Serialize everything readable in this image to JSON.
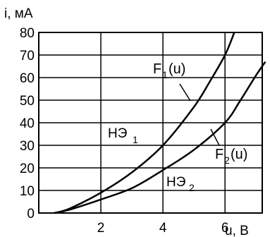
{
  "chart_data": {
    "type": "line",
    "ylabel": "i,  мА",
    "xlabel": "u,  В",
    "xlim": [
      0,
      7.2
    ],
    "ylim": [
      0,
      80
    ],
    "x_ticks": [
      2,
      4,
      6
    ],
    "y_ticks": [
      0,
      10,
      20,
      30,
      40,
      50,
      60,
      70,
      80
    ],
    "grid": true,
    "series": [
      {
        "name": "НЭ 1",
        "function_label": "F1(u)",
        "points": [
          [
            0.5,
            0
          ],
          [
            1,
            2
          ],
          [
            2,
            9
          ],
          [
            3,
            18
          ],
          [
            4,
            30
          ],
          [
            5,
            47
          ],
          [
            5.5,
            58
          ],
          [
            6,
            70
          ],
          [
            6.3,
            80
          ]
        ]
      },
      {
        "name": "НЭ 2",
        "function_label": "F2(u)",
        "points": [
          [
            0.5,
            0
          ],
          [
            1,
            1.5
          ],
          [
            2,
            6
          ],
          [
            3,
            11
          ],
          [
            4,
            19
          ],
          [
            5,
            28
          ],
          [
            6,
            40
          ],
          [
            6.5,
            50
          ],
          [
            7,
            61
          ],
          [
            7.3,
            67
          ]
        ]
      }
    ]
  },
  "labels": {
    "y_axis_title": "i,  мА",
    "x_axis_title": "u,  В",
    "f1_label": "F",
    "f1_sub": "1",
    "f1_arg": "(u)",
    "f2_label": "F",
    "f2_sub": "2",
    "f2_arg": "(u)",
    "ne1_label": "НЭ",
    "ne1_sub": "1",
    "ne2_label": "НЭ",
    "ne2_sub": "2"
  }
}
